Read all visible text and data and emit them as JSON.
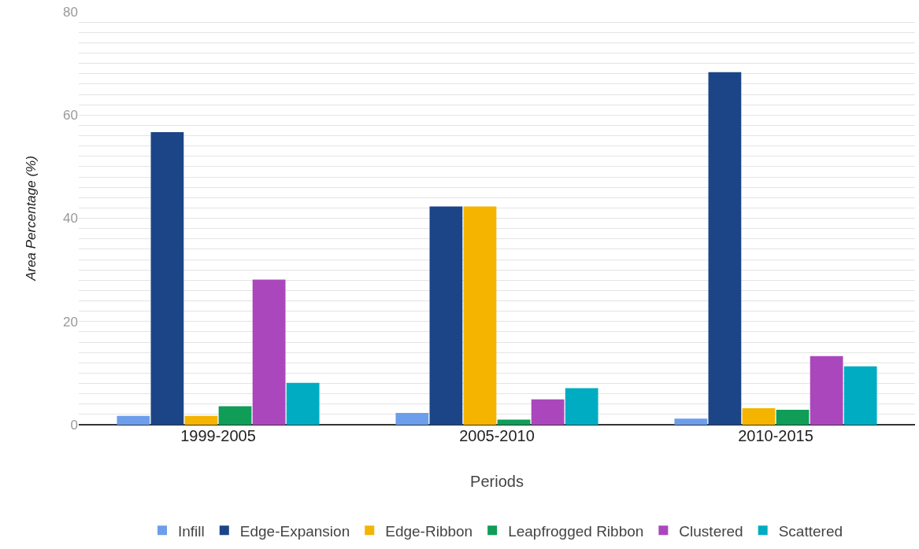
{
  "chart_data": {
    "type": "bar",
    "xlabel": "Periods",
    "ylabel": "Area Percentage (%)",
    "categories": [
      "1999-2005",
      "2005-2010",
      "2010-2015"
    ],
    "series": [
      {
        "name": "Infill",
        "color": "#6d9eeb",
        "values": [
          1.7,
          2.3,
          1.2
        ]
      },
      {
        "name": "Edge-Expansion",
        "color": "#1c4587",
        "values": [
          56.7,
          42.3,
          68.3
        ]
      },
      {
        "name": "Edge-Ribbon",
        "color": "#f4b400",
        "values": [
          1.7,
          42.3,
          3.2
        ]
      },
      {
        "name": "Leapfrogged Ribbon",
        "color": "#0f9d58",
        "values": [
          3.6,
          1.0,
          2.9
        ]
      },
      {
        "name": "Clustered",
        "color": "#ab47bc",
        "values": [
          28.1,
          4.9,
          13.3
        ]
      },
      {
        "name": "Scattered",
        "color": "#00acc1",
        "values": [
          8.1,
          7.1,
          11.3
        ]
      }
    ],
    "ylim": [
      0,
      80
    ],
    "yticks": [
      0,
      {
        "value": 2,
        "label": null
      },
      {
        "value": 4,
        "label": null
      },
      {
        "value": 6,
        "label": null
      },
      {
        "value": 8,
        "label": null
      },
      {
        "value": 10,
        "label": null
      },
      {
        "value": 12,
        "label": null
      },
      {
        "value": 14,
        "label": null
      },
      {
        "value": 16,
        "label": null
      },
      {
        "value": 18,
        "label": null
      },
      20,
      {
        "value": 22,
        "label": null
      },
      {
        "value": 24,
        "label": null
      },
      {
        "value": 26,
        "label": null
      },
      {
        "value": 28,
        "label": null
      },
      {
        "value": 30,
        "label": null
      },
      {
        "value": 32,
        "label": null
      },
      {
        "value": 34,
        "label": null
      },
      {
        "value": 36,
        "label": null
      },
      {
        "value": 38,
        "label": null
      },
      40,
      {
        "value": 42,
        "label": null
      },
      {
        "value": 44,
        "label": null
      },
      {
        "value": 46,
        "label": null
      },
      {
        "value": 48,
        "label": null
      },
      {
        "value": 50,
        "label": null
      },
      {
        "value": 52,
        "label": null
      },
      {
        "value": 54,
        "label": null
      },
      {
        "value": 56,
        "label": null
      },
      {
        "value": 58,
        "label": null
      },
      60,
      {
        "value": 62,
        "label": null
      },
      {
        "value": 64,
        "label": null
      },
      {
        "value": 66,
        "label": null
      },
      {
        "value": 68,
        "label": null
      },
      {
        "value": 70,
        "label": null
      },
      {
        "value": 72,
        "label": null
      },
      {
        "value": 74,
        "label": null
      },
      {
        "value": 76,
        "label": null
      },
      {
        "value": 78,
        "label": null
      },
      80
    ],
    "grid": "y",
    "legend": "bottom"
  }
}
